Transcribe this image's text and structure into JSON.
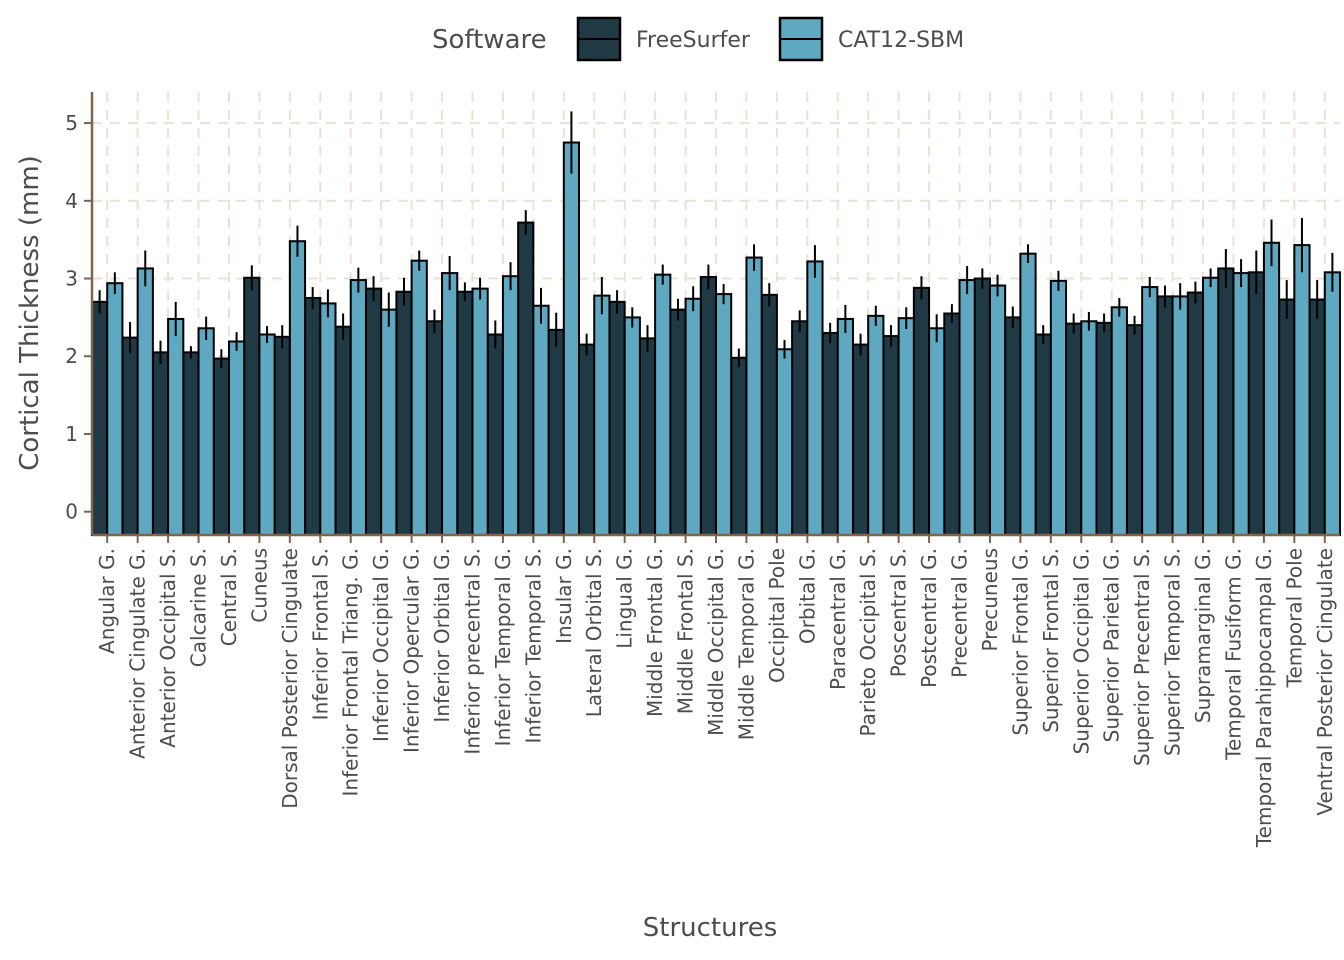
{
  "chart_data": {
    "type": "bar",
    "title": "",
    "xlabel": "Structures",
    "ylabel": "Cortical Thickness (mm)",
    "ylim": [
      -0.3,
      5.4
    ],
    "yticks": [
      0,
      1,
      2,
      3,
      4,
      5
    ],
    "grid": "dashed major gridlines",
    "legend": {
      "title": "Software",
      "placement": "top"
    },
    "colors": {
      "FreeSurfer": "#1f3a45",
      "CAT12-SBM": "#5ea8c2",
      "grid": "#ede0d4",
      "axis": "#7a6650"
    },
    "categories": [
      "Angular G.",
      "Anterior Cingulate G.",
      "Anterior Occipital S.",
      "Calcarine S.",
      "Central S.",
      "Cuneus",
      "Dorsal Posterior Cingulate",
      "Inferior Frontal S.",
      "Inferior Frontal Triang. G.",
      "Inferior Occipital G.",
      "Inferior Opercular G.",
      "Inferior Orbital G.",
      "Inferior precentral S.",
      "Inferior Temporal G.",
      "Inferior Temporal S.",
      "Insular G.",
      "Lateral Orbital S.",
      "Lingual G.",
      "Middle Frontal G.",
      "Middle Frontal S.",
      "Middle Occipital G.",
      "Middle Temporal G.",
      "Occipital Pole",
      "Orbital G.",
      "Paracentral G.",
      "Parieto Occipital S.",
      "Poscentral S.",
      "Postcentral G.",
      "Precentral G.",
      "Precuneus",
      "Superior Frontal G.",
      "Superior Frontal S.",
      "Superior Occipital G.",
      "Superior Parietal G.",
      "Superior Precentral S.",
      "Superior Temporal S.",
      "Supramarginal G.",
      "Temporal Fusiform G.",
      "Temporal Parahippocampal G.",
      "Temporal Pole",
      "Ventral Posterior Cingulate"
    ],
    "series": [
      {
        "name": "FreeSurfer",
        "values": [
          2.7,
          2.24,
          2.05,
          2.05,
          1.97,
          3.01,
          2.25,
          2.75,
          2.38,
          2.87,
          2.83,
          2.45,
          2.83,
          2.28,
          3.72,
          2.34,
          2.15,
          2.7,
          2.23,
          2.6,
          3.02,
          1.98,
          2.79,
          2.45,
          2.3,
          2.15,
          2.26,
          2.88,
          2.55,
          3.0,
          2.5,
          2.28,
          2.42,
          2.43,
          2.4,
          2.77,
          2.82,
          3.13,
          3.08,
          2.73,
          2.73
        ],
        "errors": [
          0.15,
          0.2,
          0.15,
          0.08,
          0.12,
          0.16,
          0.15,
          0.14,
          0.17,
          0.16,
          0.18,
          0.15,
          0.12,
          0.18,
          0.16,
          0.22,
          0.14,
          0.15,
          0.17,
          0.14,
          0.16,
          0.12,
          0.15,
          0.14,
          0.13,
          0.14,
          0.14,
          0.15,
          0.12,
          0.13,
          0.14,
          0.12,
          0.13,
          0.12,
          0.12,
          0.14,
          0.14,
          0.25,
          0.28,
          0.25,
          0.25
        ]
      },
      {
        "name": "CAT12-SBM",
        "values": [
          2.94,
          3.13,
          2.48,
          2.36,
          2.19,
          2.28,
          3.48,
          2.68,
          2.98,
          2.6,
          3.23,
          3.07,
          2.87,
          3.03,
          2.65,
          4.75,
          2.78,
          2.5,
          3.05,
          2.74,
          2.8,
          3.27,
          2.09,
          3.22,
          2.48,
          2.52,
          2.49,
          2.36,
          2.98,
          2.91,
          3.32,
          2.97,
          2.45,
          2.63,
          2.89,
          2.77,
          3.01,
          3.07,
          3.46,
          3.43,
          3.08
        ],
        "errors": [
          0.14,
          0.23,
          0.22,
          0.15,
          0.12,
          0.11,
          0.2,
          0.18,
          0.16,
          0.22,
          0.13,
          0.22,
          0.14,
          0.18,
          0.23,
          0.4,
          0.24,
          0.13,
          0.13,
          0.16,
          0.13,
          0.17,
          0.12,
          0.21,
          0.18,
          0.13,
          0.14,
          0.18,
          0.18,
          0.14,
          0.12,
          0.13,
          0.12,
          0.12,
          0.13,
          0.17,
          0.12,
          0.18,
          0.3,
          0.35,
          0.25
        ]
      }
    ]
  }
}
